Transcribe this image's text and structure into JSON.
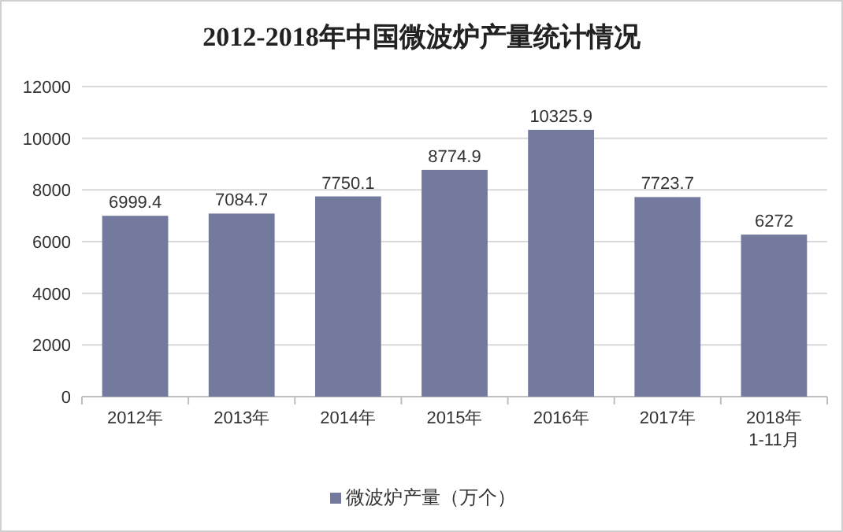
{
  "chart_data": {
    "type": "bar",
    "title": "2012-2018年中国微波炉产量统计情况",
    "categories": [
      "2012年",
      "2013年",
      "2014年",
      "2015年",
      "2016年",
      "2017年",
      "2018年\n1-11月"
    ],
    "series": [
      {
        "name": "微波炉产量（万个）",
        "color": "#737a9e",
        "values": [
          6999.4,
          7084.7,
          7750.1,
          8774.9,
          10325.9,
          7723.7,
          6272
        ]
      }
    ],
    "ylim": [
      0,
      12000
    ],
    "yticks": [
      0,
      2000,
      4000,
      6000,
      8000,
      10000,
      12000
    ],
    "grid": "y",
    "legend": "bottom",
    "data_labels": true
  }
}
